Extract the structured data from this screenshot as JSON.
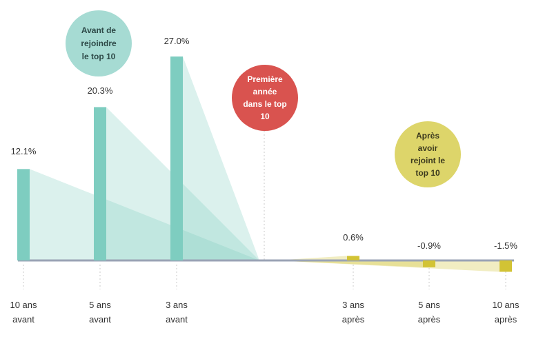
{
  "chart_data": {
    "type": "bar",
    "categories": [
      "10 ans avant",
      "5 ans avant",
      "3 ans avant",
      "3 ans après",
      "5 ans après",
      "10 ans après"
    ],
    "tick_labels": [
      [
        "10 ans",
        "avant"
      ],
      [
        "5 ans",
        "avant"
      ],
      [
        "3 ans",
        "avant"
      ],
      [
        "3 ans",
        "après"
      ],
      [
        "5 ans",
        "après"
      ],
      [
        "10 ans",
        "après"
      ]
    ],
    "values": [
      12.1,
      20.3,
      27.0,
      0.6,
      -0.9,
      -1.5
    ],
    "value_labels": [
      "12.1%",
      "20.3%",
      "27.0%",
      "0.6%",
      "-0.9%",
      "-1.5%"
    ],
    "ylim": [
      -2,
      27
    ],
    "annotations": {
      "before": [
        "Avant de",
        "rejoindre",
        "le top 10"
      ],
      "first_year": [
        "Première",
        "année",
        "dans le top",
        "10"
      ],
      "after": [
        "Après",
        "avoir",
        "rejoint le",
        "top 10"
      ]
    },
    "colors": {
      "before": "#7ecdc0",
      "before_fill": "#cfece7",
      "first_year": "#d9534f",
      "after": "#d2c335",
      "after_bubble": "#ddd56a",
      "after_fill": "#f1edc8",
      "baseline": "#9aa3b5",
      "guide": "#c8c8c8"
    }
  }
}
